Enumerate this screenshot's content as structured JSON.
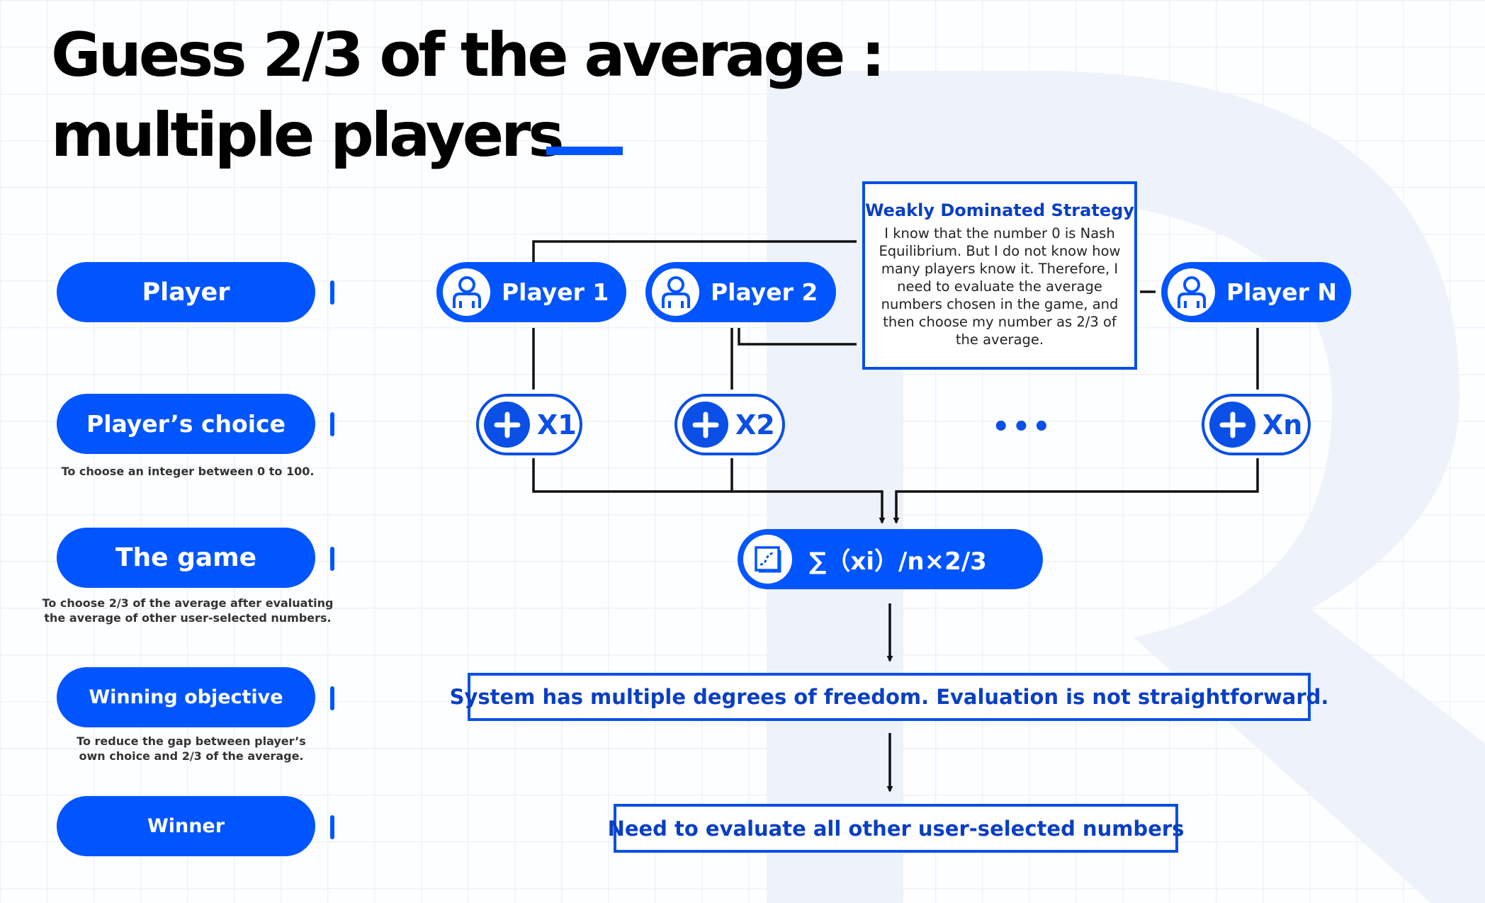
{
  "title": {
    "line1": "Guess 2/3 of the average :",
    "line2": "multiple players"
  },
  "colors": {
    "primary": "#0055ff",
    "primary_dark": "#0a3fc4",
    "text": "#000000",
    "connector": "#111111"
  },
  "rows": [
    {
      "label": "Player",
      "caption": ""
    },
    {
      "label": "Player’s choice",
      "caption": "To choose an integer between 0 to 100."
    },
    {
      "label": "The game",
      "caption": "To choose 2/3 of the average after evaluating the average of other user-selected numbers."
    },
    {
      "label": "Winning objective",
      "caption": "To reduce the gap between player’s own choice and 2/3 of the average."
    },
    {
      "label": "Winner",
      "caption": ""
    }
  ],
  "players": [
    {
      "label": "Player 1",
      "icon": "user-icon"
    },
    {
      "label": "Player 2",
      "icon": "user-icon"
    },
    {
      "label": "Player N",
      "icon": "user-icon"
    }
  ],
  "choices": [
    {
      "label": "X1",
      "icon": "plus-icon"
    },
    {
      "label": "X2",
      "icon": "plus-icon"
    },
    {
      "label": "Xn",
      "icon": "plus-icon"
    }
  ],
  "ellipsis": "•••",
  "formula": {
    "text": "∑（xi）/n×2/3",
    "icon": "chart-icon"
  },
  "strategy": {
    "title": "Weakly Dominated Strategy",
    "body": "I know that the number 0 is Nash Equilibrium. But I do not know how many players know it. Therefore, I need to evaluate the average numbers chosen in the game, and then choose my number as 2/3 of the average."
  },
  "result": "System has multiple degrees of freedom. Evaluation is not straightforward.",
  "winner_text": "Need to evaluate all other user-selected numbers"
}
